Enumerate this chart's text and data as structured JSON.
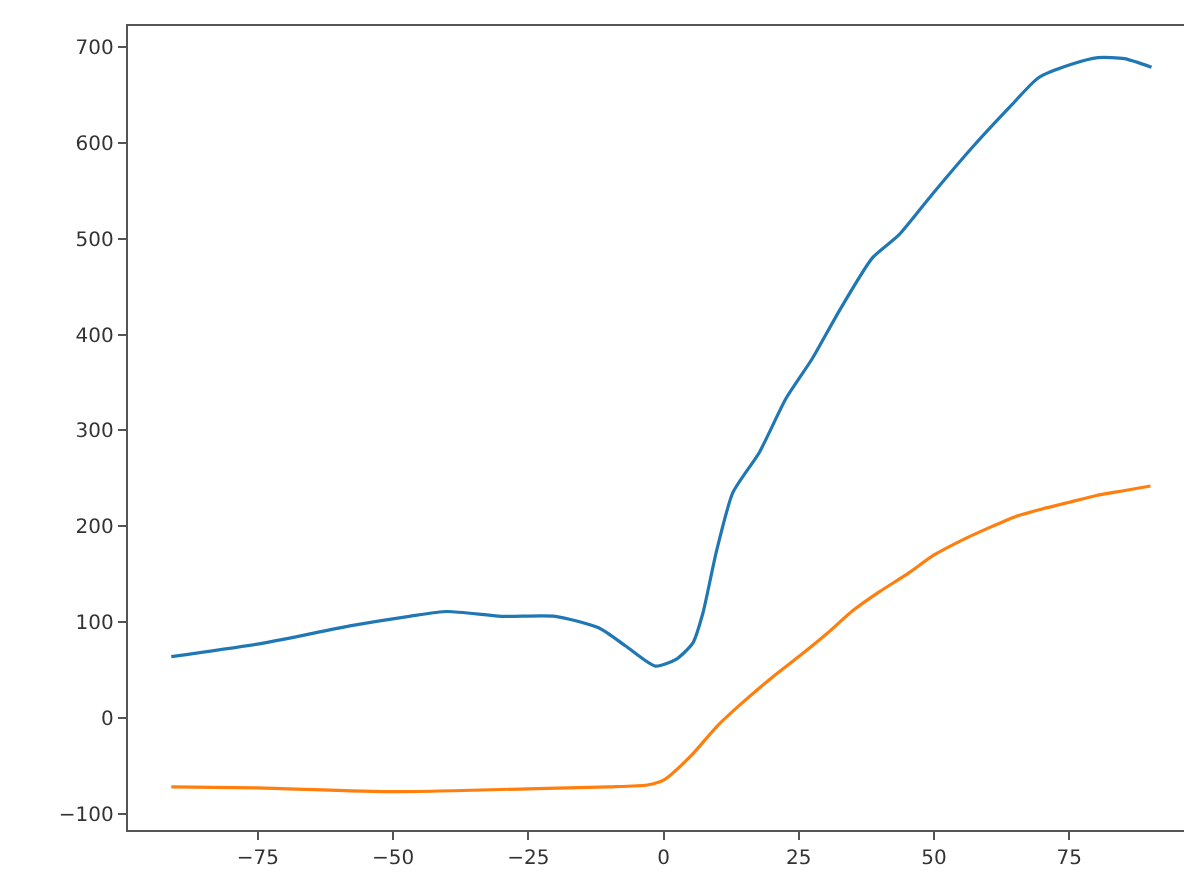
{
  "chart_data": {
    "type": "line",
    "xlim": [
      -99,
      96.2
    ],
    "ylim": [
      -117,
      722
    ],
    "xticks": [
      {
        "value": -75,
        "label": "−75"
      },
      {
        "value": -50,
        "label": "−50"
      },
      {
        "value": -25,
        "label": "−25"
      },
      0,
      25,
      50,
      75
    ],
    "yticks": [
      {
        "value": -100,
        "label": "−100"
      },
      0,
      100,
      200,
      300,
      400,
      500,
      600,
      700
    ],
    "series": [
      {
        "color": "#1f77b4",
        "x": [
          -91,
          -74,
          -58,
          -47,
          -40,
          -30,
          -20,
          -12,
          -7,
          -1.5,
          2.3,
          5.4,
          7.3,
          9.7,
          12.8,
          17.7,
          22.6,
          27.5,
          32.4,
          38.6,
          43.5,
          49.6,
          57,
          64.4,
          69.3,
          75.4,
          80.3,
          85.2,
          90.2
        ],
        "values": [
          64,
          78,
          96,
          106,
          111,
          106,
          106,
          94,
          75,
          54,
          61,
          78,
          110,
          172,
          235,
          277,
          333,
          375,
          424,
          480,
          504,
          546,
          595,
          640,
          668,
          682,
          689,
          688,
          679
        ]
      },
      {
        "color": "#ff7f0e",
        "x": [
          -91,
          -75,
          -50,
          -25,
          -10,
          -3,
          0,
          5,
          10,
          15,
          20,
          25,
          30,
          35,
          40,
          45,
          50,
          55,
          60,
          65,
          70,
          75,
          80,
          85,
          90
        ],
        "values": [
          -72,
          -73,
          -77,
          -74,
          -72,
          -70,
          -65,
          -40,
          -8,
          18,
          42,
          64,
          87,
          112,
          132,
          150,
          170,
          185,
          198,
          210,
          218,
          225,
          232,
          237,
          242
        ]
      }
    ],
    "line_style": "solid",
    "marker": "none"
  }
}
